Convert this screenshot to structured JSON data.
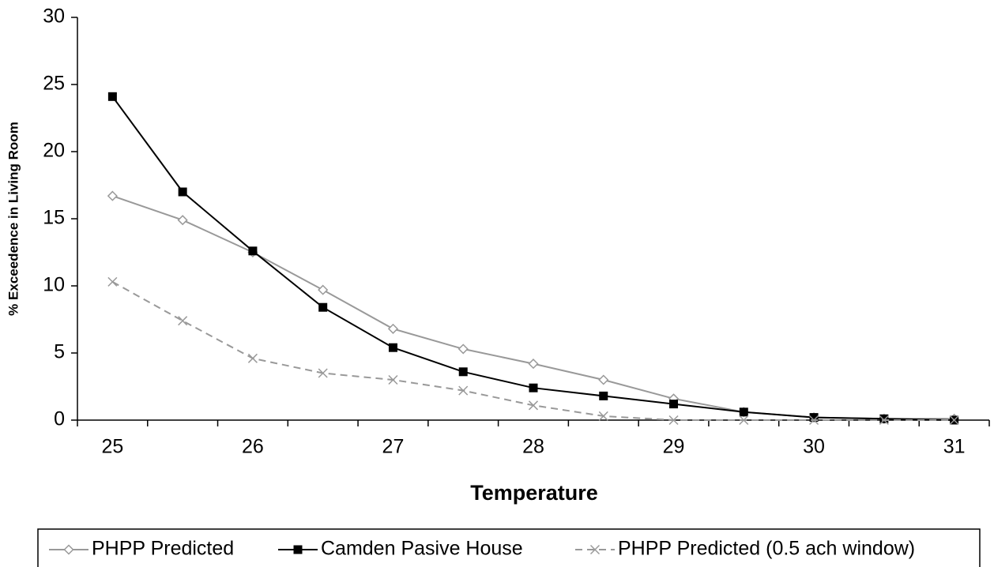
{
  "chart_data": {
    "type": "line",
    "x_label": "Temperature",
    "y_label": "% Exceedence in Living Room",
    "categories": [
      "25",
      null,
      "26",
      null,
      "27",
      null,
      "28",
      null,
      "29",
      null,
      "30",
      null,
      "31"
    ],
    "ylim": [
      0,
      30
    ],
    "yticks": [
      0,
      5,
      10,
      15,
      20,
      25,
      30
    ],
    "grid": false,
    "legend": "bottom",
    "series": [
      {
        "name": "PHPP Predicted",
        "color": "#999999",
        "marker": "diamond",
        "dash": "solid",
        "values": [
          16.7,
          14.9,
          12.5,
          9.7,
          6.8,
          5.3,
          4.2,
          3.0,
          1.6,
          0.6,
          0.2,
          0.1,
          0.1
        ]
      },
      {
        "name": "Camden Pasive House",
        "color": "#000000",
        "marker": "square",
        "dash": "solid",
        "values": [
          24.1,
          17.0,
          12.6,
          8.4,
          5.4,
          3.6,
          2.4,
          1.8,
          1.2,
          0.6,
          0.2,
          0.1,
          0.0
        ]
      },
      {
        "name": "PHPP Predicted (0.5 ach window)",
        "color": "#999999",
        "marker": "x",
        "dash": "dashed",
        "values": [
          10.3,
          7.4,
          4.6,
          3.5,
          3.0,
          2.2,
          1.1,
          0.3,
          0.0,
          0.0,
          0.0,
          0.0,
          0.0
        ]
      }
    ]
  }
}
